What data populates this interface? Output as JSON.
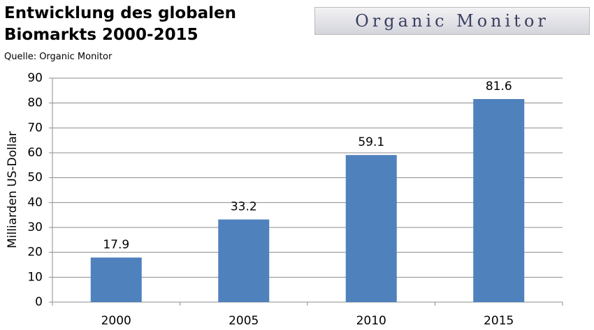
{
  "logo": "Organic Monitor",
  "chart_data": {
    "type": "bar",
    "title": "Entwicklung des globalen Biomarkts 2000-2015",
    "subtitle": "Quelle: Organic Monitor",
    "y_label": "Milliarden US-Dollar",
    "categories": [
      "2000",
      "2005",
      "2010",
      "2015"
    ],
    "values": [
      17.9,
      33.2,
      59.1,
      81.6
    ],
    "color": "#4f81bd",
    "ylim": [
      0,
      90
    ],
    "yticks": [
      0,
      10,
      20,
      30,
      40,
      50,
      60,
      70,
      80,
      90
    ],
    "grid": true
  }
}
